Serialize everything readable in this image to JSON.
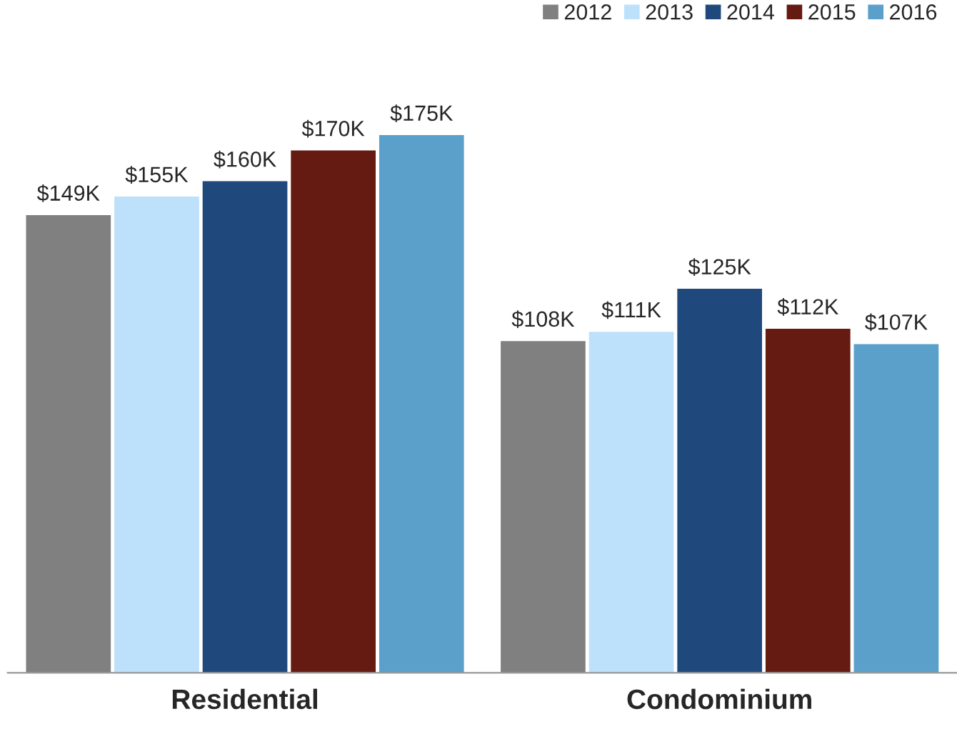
{
  "chart_data": {
    "type": "bar",
    "categories": [
      "Residential",
      "Condominium"
    ],
    "series": [
      {
        "name": "2012",
        "color": "#808080",
        "values": [
          149,
          108
        ],
        "value_labels": [
          "$149K",
          "$108K"
        ]
      },
      {
        "name": "2013",
        "color": "#bde0fb",
        "values": [
          155,
          111
        ],
        "value_labels": [
          "$155K",
          "$111K"
        ]
      },
      {
        "name": "2014",
        "color": "#1f497d",
        "values": [
          160,
          125
        ],
        "value_labels": [
          "$160K",
          "$125K"
        ]
      },
      {
        "name": "2015",
        "color": "#651a12",
        "values": [
          170,
          112
        ],
        "value_labels": [
          "$170K",
          "$112K"
        ]
      },
      {
        "name": "2016",
        "color": "#5aa0cb",
        "values": [
          175,
          107
        ],
        "value_labels": [
          "$175K",
          "$107K"
        ]
      }
    ],
    "legend": "top right",
    "grid": false
  }
}
